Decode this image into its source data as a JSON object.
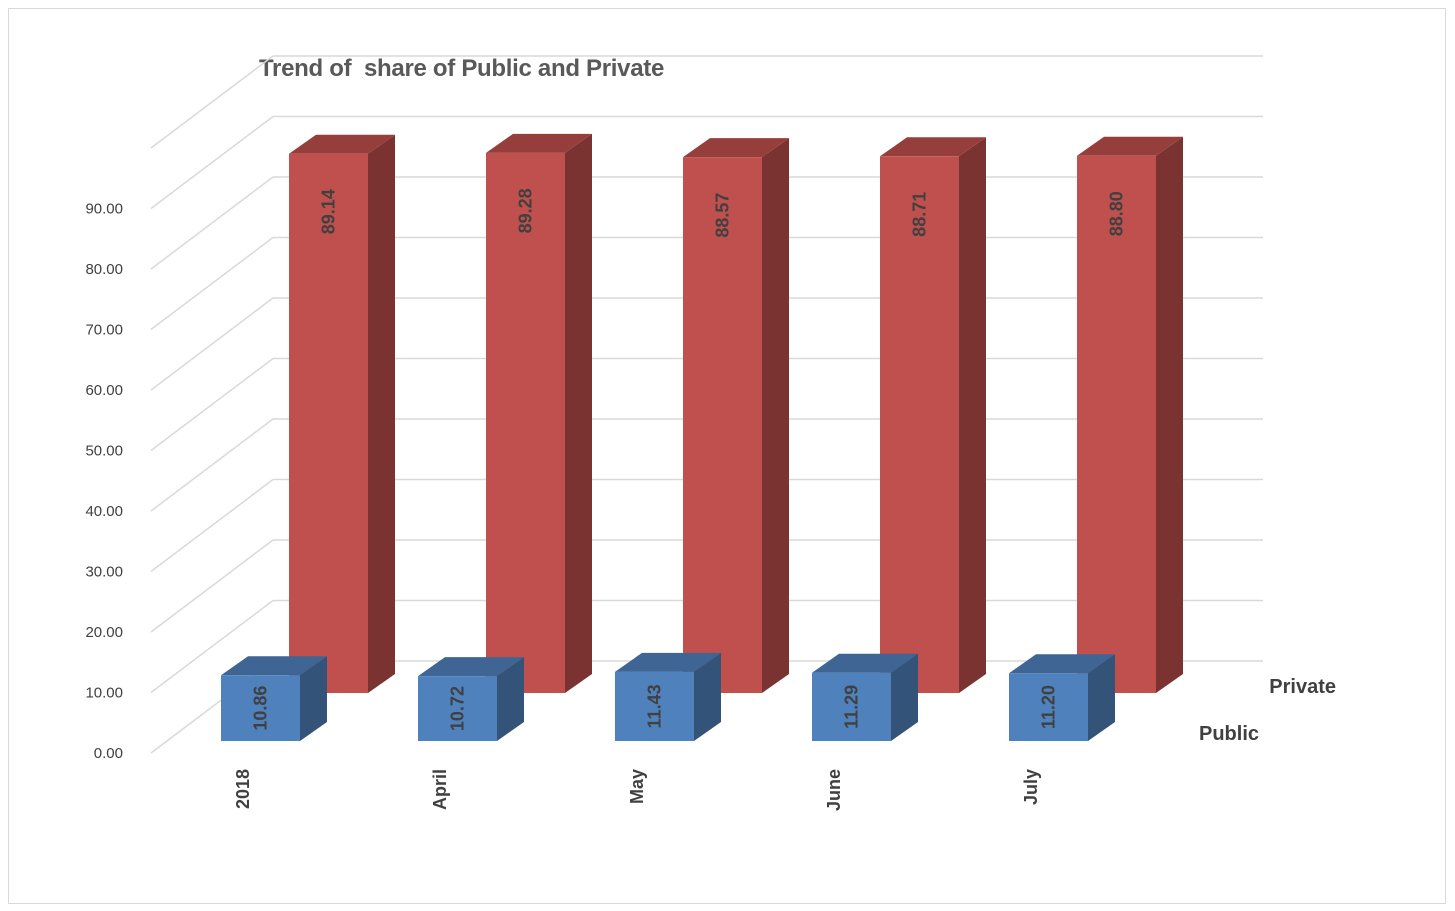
{
  "chart_data": {
    "type": "bar",
    "variant": "3d-column",
    "title": "Trend of  share of Public and Private",
    "categories": [
      "2018",
      "April",
      "May",
      "June",
      "July"
    ],
    "series": [
      {
        "name": "Public",
        "values": [
          10.86,
          10.72,
          11.43,
          11.29,
          11.2
        ],
        "labels": [
          "10.86",
          "10.72",
          "11.43",
          "11.29",
          "11.20"
        ],
        "color": "#4f81bd"
      },
      {
        "name": "Private",
        "values": [
          89.14,
          89.28,
          88.57,
          88.71,
          88.8
        ],
        "labels": [
          "89.14",
          "89.28",
          "88.57",
          "88.71",
          "88.80"
        ],
        "color": "#c0504d"
      }
    ],
    "yticks": [
      "0.00",
      "10.00",
      "20.00",
      "30.00",
      "40.00",
      "50.00",
      "60.00",
      "70.00",
      "80.00",
      "90.00"
    ],
    "ylim": [
      0,
      100
    ],
    "xlabel": "",
    "ylabel": "",
    "grid": true
  }
}
